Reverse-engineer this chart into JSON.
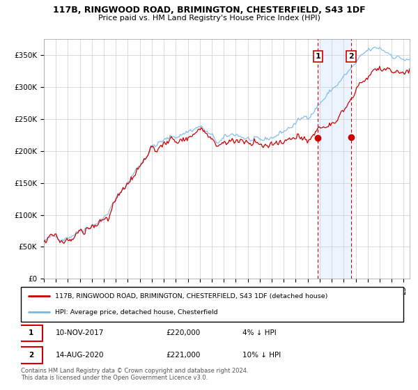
{
  "title": "117B, RINGWOOD ROAD, BRIMINGTON, CHESTERFIELD, S43 1DF",
  "subtitle": "Price paid vs. HM Land Registry's House Price Index (HPI)",
  "ylabel_ticks": [
    "£0",
    "£50K",
    "£100K",
    "£150K",
    "£200K",
    "£250K",
    "£300K",
    "£350K"
  ],
  "ytick_values": [
    0,
    50000,
    100000,
    150000,
    200000,
    250000,
    300000,
    350000
  ],
  "ylim": [
    0,
    375000
  ],
  "xlim_start": 1995.0,
  "xlim_end": 2025.5,
  "hpi_color": "#7ab8e8",
  "price_color": "#cc0000",
  "marker1_date": 2017.86,
  "marker2_date": 2020.62,
  "marker1_price": 220000,
  "marker2_price": 221000,
  "annotation1": "1",
  "annotation2": "2",
  "legend_label1": "117B, RINGWOOD ROAD, BRIMINGTON, CHESTERFIELD, S43 1DF (detached house)",
  "legend_label2": "HPI: Average price, detached house, Chesterfield",
  "table_row1": [
    "1",
    "10-NOV-2017",
    "£220,000",
    "4% ↓ HPI"
  ],
  "table_row2": [
    "2",
    "14-AUG-2020",
    "£221,000",
    "10% ↓ HPI"
  ],
  "footer": "Contains HM Land Registry data © Crown copyright and database right 2024.\nThis data is licensed under the Open Government Licence v3.0.",
  "background_color": "#ffffff",
  "shade_color": "#ddeeff"
}
